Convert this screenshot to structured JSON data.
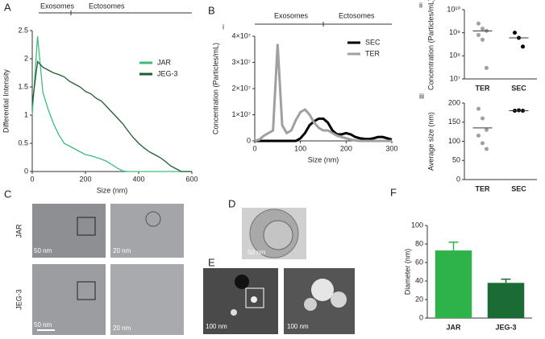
{
  "chart_data": [
    {
      "type": "line",
      "title": "Exosomes Ectosomes",
      "annotations": [
        "Exosomes",
        "Ectosomes"
      ],
      "ylabel": "Differential Intensity",
      "xlabel": "Size (nm)",
      "x": [
        0,
        20,
        40,
        60,
        80,
        100,
        120,
        140,
        160,
        180,
        200,
        220,
        240,
        260,
        280,
        300,
        320,
        340,
        360,
        380,
        400,
        420,
        440,
        460,
        480,
        500,
        520,
        540,
        560,
        580,
        600
      ],
      "series": [
        {
          "name": "JAR",
          "color": "#3dbd7d",
          "values": [
            1.0,
            2.4,
            1.4,
            1.1,
            0.85,
            0.65,
            0.5,
            0.45,
            0.4,
            0.35,
            0.3,
            0.28,
            0.25,
            0.22,
            0.18,
            0.12,
            0.06,
            0.01,
            0,
            0,
            0,
            0,
            0,
            0,
            0,
            0,
            0,
            0,
            0,
            0,
            0
          ]
        },
        {
          "name": "JEG-3",
          "color": "#1e5e2e",
          "values": [
            1.2,
            1.95,
            1.85,
            1.8,
            1.75,
            1.72,
            1.68,
            1.6,
            1.55,
            1.5,
            1.42,
            1.38,
            1.3,
            1.25,
            1.15,
            1.05,
            0.95,
            0.85,
            0.72,
            0.6,
            0.5,
            0.42,
            0.35,
            0.3,
            0.25,
            0.18,
            0.1,
            0.05,
            0,
            0,
            0
          ]
        }
      ],
      "xlim": [
        0,
        600
      ],
      "xticks": [
        0,
        200,
        400,
        600
      ],
      "ylim": [
        0,
        2.5
      ],
      "yticks": [
        0,
        0.5,
        1,
        1.5,
        2,
        2.5
      ],
      "legend": "right"
    },
    {
      "type": "line",
      "annotations": [
        "Exosomes",
        "Ectosomes"
      ],
      "ylabel": "Concentration (Particles/mL)",
      "xlabel": "Size (nm)",
      "x": [
        0,
        10,
        20,
        30,
        40,
        50,
        60,
        70,
        80,
        90,
        100,
        110,
        120,
        130,
        140,
        150,
        160,
        170,
        180,
        190,
        200,
        210,
        220,
        230,
        240,
        250,
        260,
        270,
        280,
        290,
        300
      ],
      "series": [
        {
          "name": "SEC",
          "color": "#000000",
          "values": [
            0,
            0,
            0,
            0,
            0,
            0,
            0,
            0,
            0,
            0,
            1000000,
            3000000,
            6000000,
            7500000,
            8500000,
            8500000,
            7000000,
            4000000,
            2500000,
            2500000,
            3000000,
            2500000,
            1500000,
            1000000,
            800000,
            700000,
            1000000,
            1500000,
            1500000,
            1000000,
            500000
          ]
        },
        {
          "name": "TER",
          "color": "#a0a0a0",
          "values": [
            0,
            500000,
            2000000,
            3000000,
            4000000,
            37000000,
            6000000,
            3000000,
            4000000,
            8000000,
            11000000,
            12000000,
            10000000,
            7000000,
            5000000,
            4000000,
            4000000,
            3000000,
            2000000,
            1500000,
            1000000,
            500000,
            200000,
            0,
            0,
            0,
            0,
            0,
            0,
            0,
            0
          ]
        }
      ],
      "xlim": [
        0,
        300
      ],
      "xticks": [
        0,
        100,
        200,
        300
      ],
      "ylim": [
        0,
        40000000
      ],
      "yticks": [
        0,
        {
          "value": 10000000,
          "label": "1×10⁷"
        },
        {
          "value": 20000000,
          "label": "2×10⁷"
        },
        {
          "value": 30000000,
          "label": "3×10⁷"
        },
        {
          "value": 40000000,
          "label": "4×10⁷"
        }
      ],
      "legend": "upper right"
    },
    {
      "type": "dot",
      "ylabel": "Concentration (Particles/mL)",
      "categories": [
        "TER",
        "SEC"
      ],
      "colors": [
        "#a0a0a0",
        "#000000"
      ],
      "values": [
        [
          2500000000,
          1500000000,
          1200000000,
          800000000,
          500000000,
          30000000
        ],
        [
          1000000000,
          600000000,
          250000000
        ]
      ],
      "means": [
        1200000000,
        600000000
      ],
      "log_y": true,
      "ylim": [
        10000000,
        10000000000
      ],
      "yticks": [
        {
          "value": 10000000,
          "label": "10⁷"
        },
        {
          "value": 100000000,
          "label": "10⁸"
        },
        {
          "value": 1000000000,
          "label": "10⁹"
        },
        {
          "value": 10000000000,
          "label": "10¹⁰"
        }
      ]
    },
    {
      "type": "dot",
      "ylabel": "Average size (nm)",
      "categories": [
        "TER",
        "SEC"
      ],
      "colors": [
        "#a0a0a0",
        "#000000"
      ],
      "values": [
        [
          185,
          160,
          130,
          115,
          95,
          80
        ],
        [
          180,
          181,
          180
        ]
      ],
      "means": [
        135,
        180
      ],
      "ylim": [
        0,
        200
      ],
      "yticks": [
        0,
        50,
        100,
        150,
        200
      ]
    },
    {
      "type": "bar",
      "ylabel": "Diameter (nm)",
      "categories": [
        "JAR",
        "JEG-3"
      ],
      "colors": [
        "#2db34a",
        "#1a6b34"
      ],
      "values": [
        73,
        38
      ],
      "errors": [
        9,
        4
      ],
      "ylim": [
        0,
        100
      ],
      "yticks": [
        0,
        20,
        40,
        60,
        80,
        100
      ]
    }
  ],
  "figure": {
    "panel_letters": [
      "A",
      "B",
      "C",
      "D",
      "E",
      "F"
    ],
    "sub_labels": [
      "i",
      "ii",
      "iii"
    ],
    "row_labels": [
      "JAR",
      "JEG-3"
    ],
    "scale_bars": [
      "50 nm",
      "20 nm",
      "50 nm",
      "20 nm",
      "50 nm",
      "100 nm",
      "100 nm"
    ]
  }
}
